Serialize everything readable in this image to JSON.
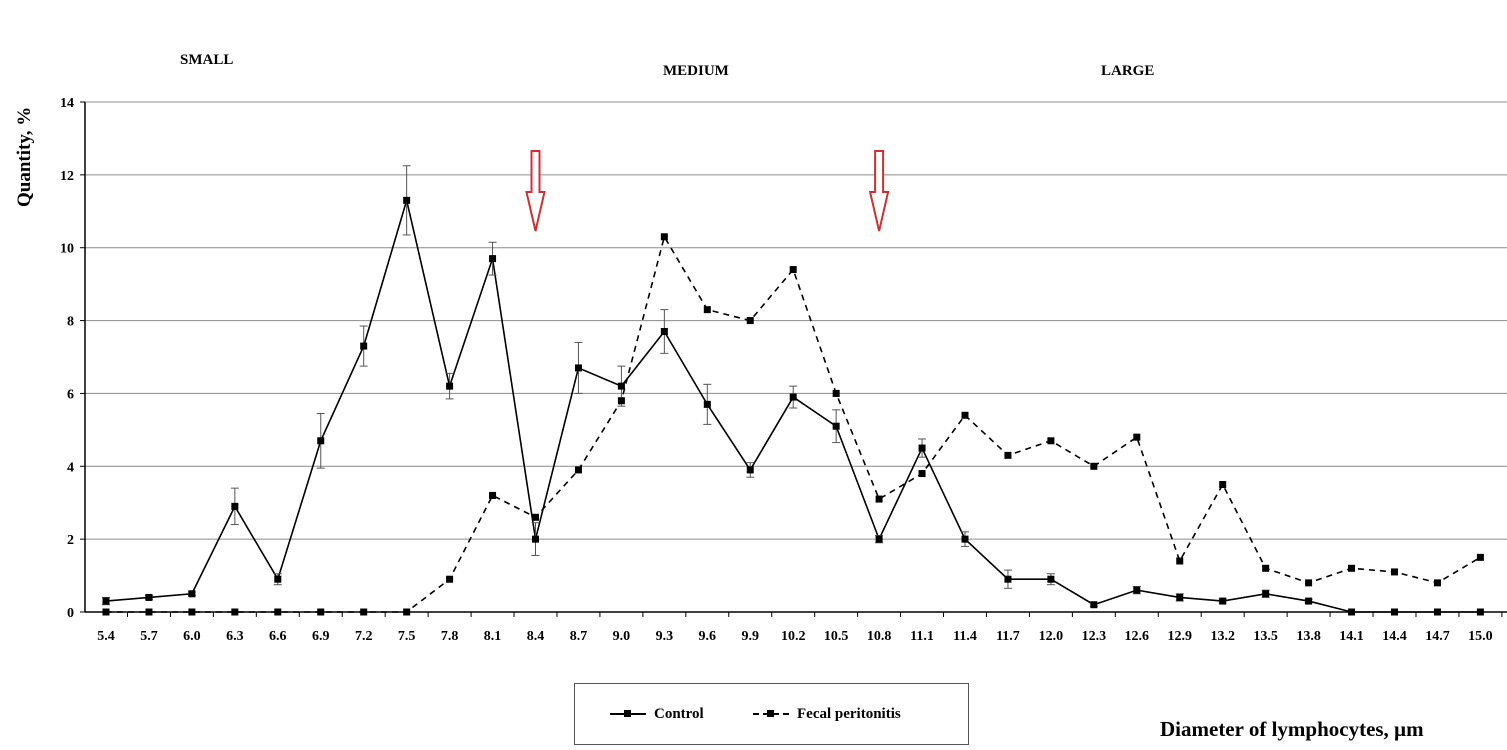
{
  "chart_data": {
    "type": "line",
    "title": "",
    "xlabel": "Diameter of lymphocytes, µm",
    "ylabel": "Quantity, %",
    "ylim": [
      0,
      14
    ],
    "yticks": [
      0,
      2,
      4,
      6,
      8,
      10,
      12,
      14
    ],
    "grid": "horizontal",
    "legend_position": "bottom-center",
    "categories": [
      "5.4",
      "5.7",
      "6.0",
      "6.3",
      "6.6",
      "6.9",
      "7.2",
      "7.5",
      "7.8",
      "8.1",
      "8.4",
      "8.7",
      "9.0",
      "9.3",
      "9.6",
      "9.9",
      "10.2",
      "10.5",
      "10.8",
      "11.1",
      "11.4",
      "11.7",
      "12.0",
      "12.3",
      "12.6",
      "12.9",
      "13.2",
      "13.5",
      "13.8",
      "14.1",
      "14.4",
      "14.7",
      "15.0"
    ],
    "series": [
      {
        "name": "Control",
        "style": "solid",
        "color": "#000000",
        "values": [
          0.3,
          0.4,
          0.5,
          2.9,
          0.9,
          4.7,
          7.3,
          11.3,
          6.2,
          9.7,
          2.0,
          6.7,
          6.2,
          7.7,
          5.7,
          3.9,
          5.9,
          5.1,
          2.0,
          4.5,
          2.0,
          0.9,
          0.9,
          0.2,
          0.6,
          0.4,
          0.3,
          0.5,
          0.3,
          0.0,
          0.0,
          0.0,
          0.0
        ],
        "errors": [
          0.1,
          0.05,
          0.05,
          0.5,
          0.15,
          0.75,
          0.55,
          0.95,
          0.35,
          0.45,
          0.45,
          0.7,
          0.55,
          0.6,
          0.55,
          0.2,
          0.3,
          0.45,
          0.1,
          0.25,
          0.2,
          0.25,
          0.15,
          0.05,
          0.1,
          0.1,
          0.05,
          0.1,
          0.05,
          0.0,
          0.0,
          0.0,
          0.0
        ]
      },
      {
        "name": "Fecal peritonitis",
        "style": "dashed",
        "color": "#000000",
        "values": [
          0.0,
          0.0,
          0.0,
          0.0,
          0.0,
          0.0,
          0.0,
          0.0,
          0.9,
          3.2,
          2.6,
          3.9,
          5.8,
          10.3,
          8.3,
          8.0,
          9.4,
          6.0,
          3.1,
          3.8,
          5.4,
          4.3,
          4.7,
          4.0,
          4.8,
          1.4,
          3.5,
          1.2,
          0.8,
          1.2,
          1.1,
          0.8,
          1.5
        ]
      }
    ],
    "sections": [
      {
        "label": "SMALL"
      },
      {
        "label": "MEDIUM"
      },
      {
        "label": "LARGE"
      }
    ],
    "annotations": [
      {
        "type": "arrow-down",
        "x": "8.4",
        "color": "#d03030"
      },
      {
        "type": "arrow-down",
        "x": "10.8",
        "color": "#d03030"
      }
    ]
  }
}
